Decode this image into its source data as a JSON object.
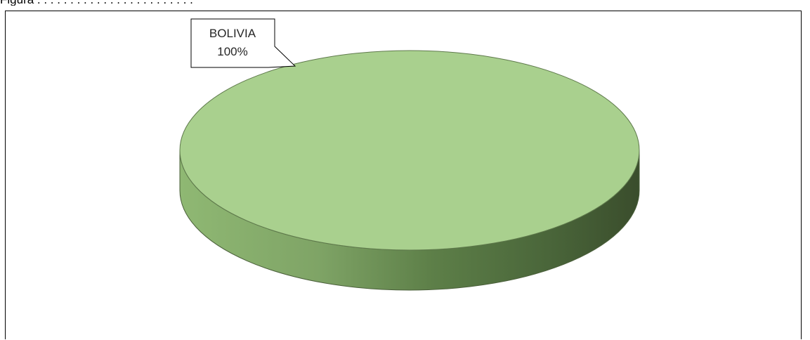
{
  "caption": "Figura . . . . . . . . . . . . . . . . . . . . . . . .",
  "chart_data": {
    "type": "pie",
    "style": "3d",
    "slices": [
      {
        "label": "BOLIVIA",
        "value": 100,
        "percent_label": "100%",
        "color": "#a9d08e",
        "side_color_dark": "#3a4d2c",
        "side_color_light": "#8fb873"
      }
    ],
    "data_labels": "callout",
    "legend": "none"
  }
}
